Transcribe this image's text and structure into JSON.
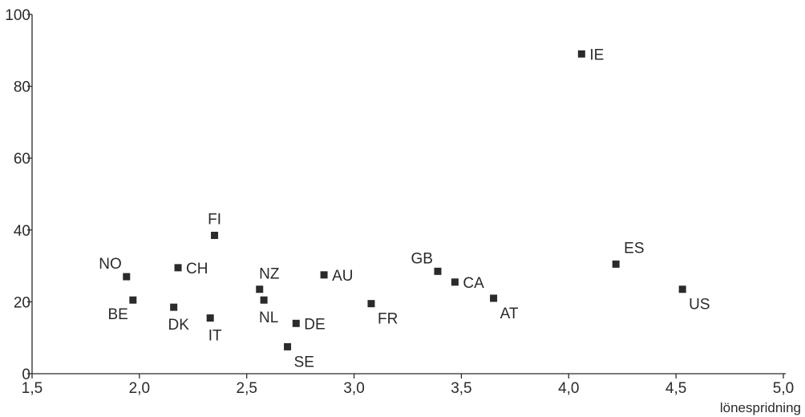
{
  "chart_data": {
    "type": "scatter",
    "title": "",
    "xlabel": "lönespridning",
    "ylabel": "",
    "xlim": [
      1.5,
      5.0
    ],
    "ylim": [
      0,
      100
    ],
    "grid": false,
    "x_ticks": [
      1.5,
      2.0,
      2.5,
      3.0,
      3.5,
      4.0,
      4.5,
      5.0
    ],
    "x_tick_labels": [
      "1,5",
      "2,0",
      "2,5",
      "3,0",
      "3,5",
      "4,0",
      "4,5",
      "5,0"
    ],
    "y_ticks": [
      0,
      20,
      40,
      60,
      80,
      100
    ],
    "y_tick_labels": [
      "0",
      "20",
      "40",
      "60",
      "80",
      "100"
    ],
    "marker_color": "#2b2b2b",
    "points": [
      {
        "label": "NO",
        "x": 1.94,
        "y": 27,
        "label_pos": "upper-left"
      },
      {
        "label": "BE",
        "x": 1.97,
        "y": 20.5,
        "label_pos": "lower-left"
      },
      {
        "label": "DK",
        "x": 2.16,
        "y": 18.5,
        "label_pos": "below-left"
      },
      {
        "label": "CH",
        "x": 2.18,
        "y": 29.5,
        "label_pos": "right"
      },
      {
        "label": "FI",
        "x": 2.35,
        "y": 38.5,
        "label_pos": "above"
      },
      {
        "label": "IT",
        "x": 2.33,
        "y": 15.5,
        "label_pos": "below"
      },
      {
        "label": "NZ",
        "x": 2.56,
        "y": 23.5,
        "label_pos": "above-right"
      },
      {
        "label": "NL",
        "x": 2.58,
        "y": 20.5,
        "label_pos": "below"
      },
      {
        "label": "SE",
        "x": 2.69,
        "y": 7.5,
        "label_pos": "lower-right"
      },
      {
        "label": "DE",
        "x": 2.73,
        "y": 14,
        "label_pos": "right"
      },
      {
        "label": "AU",
        "x": 2.86,
        "y": 27.5,
        "label_pos": "right"
      },
      {
        "label": "FR",
        "x": 3.08,
        "y": 19.5,
        "label_pos": "lower-right"
      },
      {
        "label": "GB",
        "x": 3.39,
        "y": 28.5,
        "label_pos": "upper-left"
      },
      {
        "label": "CA",
        "x": 3.47,
        "y": 25.5,
        "label_pos": "right"
      },
      {
        "label": "AT",
        "x": 3.65,
        "y": 21,
        "label_pos": "lower-right"
      },
      {
        "label": "IE",
        "x": 4.06,
        "y": 89,
        "label_pos": "right"
      },
      {
        "label": "ES",
        "x": 4.22,
        "y": 30.5,
        "label_pos": "upper-right"
      },
      {
        "label": "US",
        "x": 4.53,
        "y": 23.5,
        "label_pos": "lower-right"
      }
    ]
  }
}
